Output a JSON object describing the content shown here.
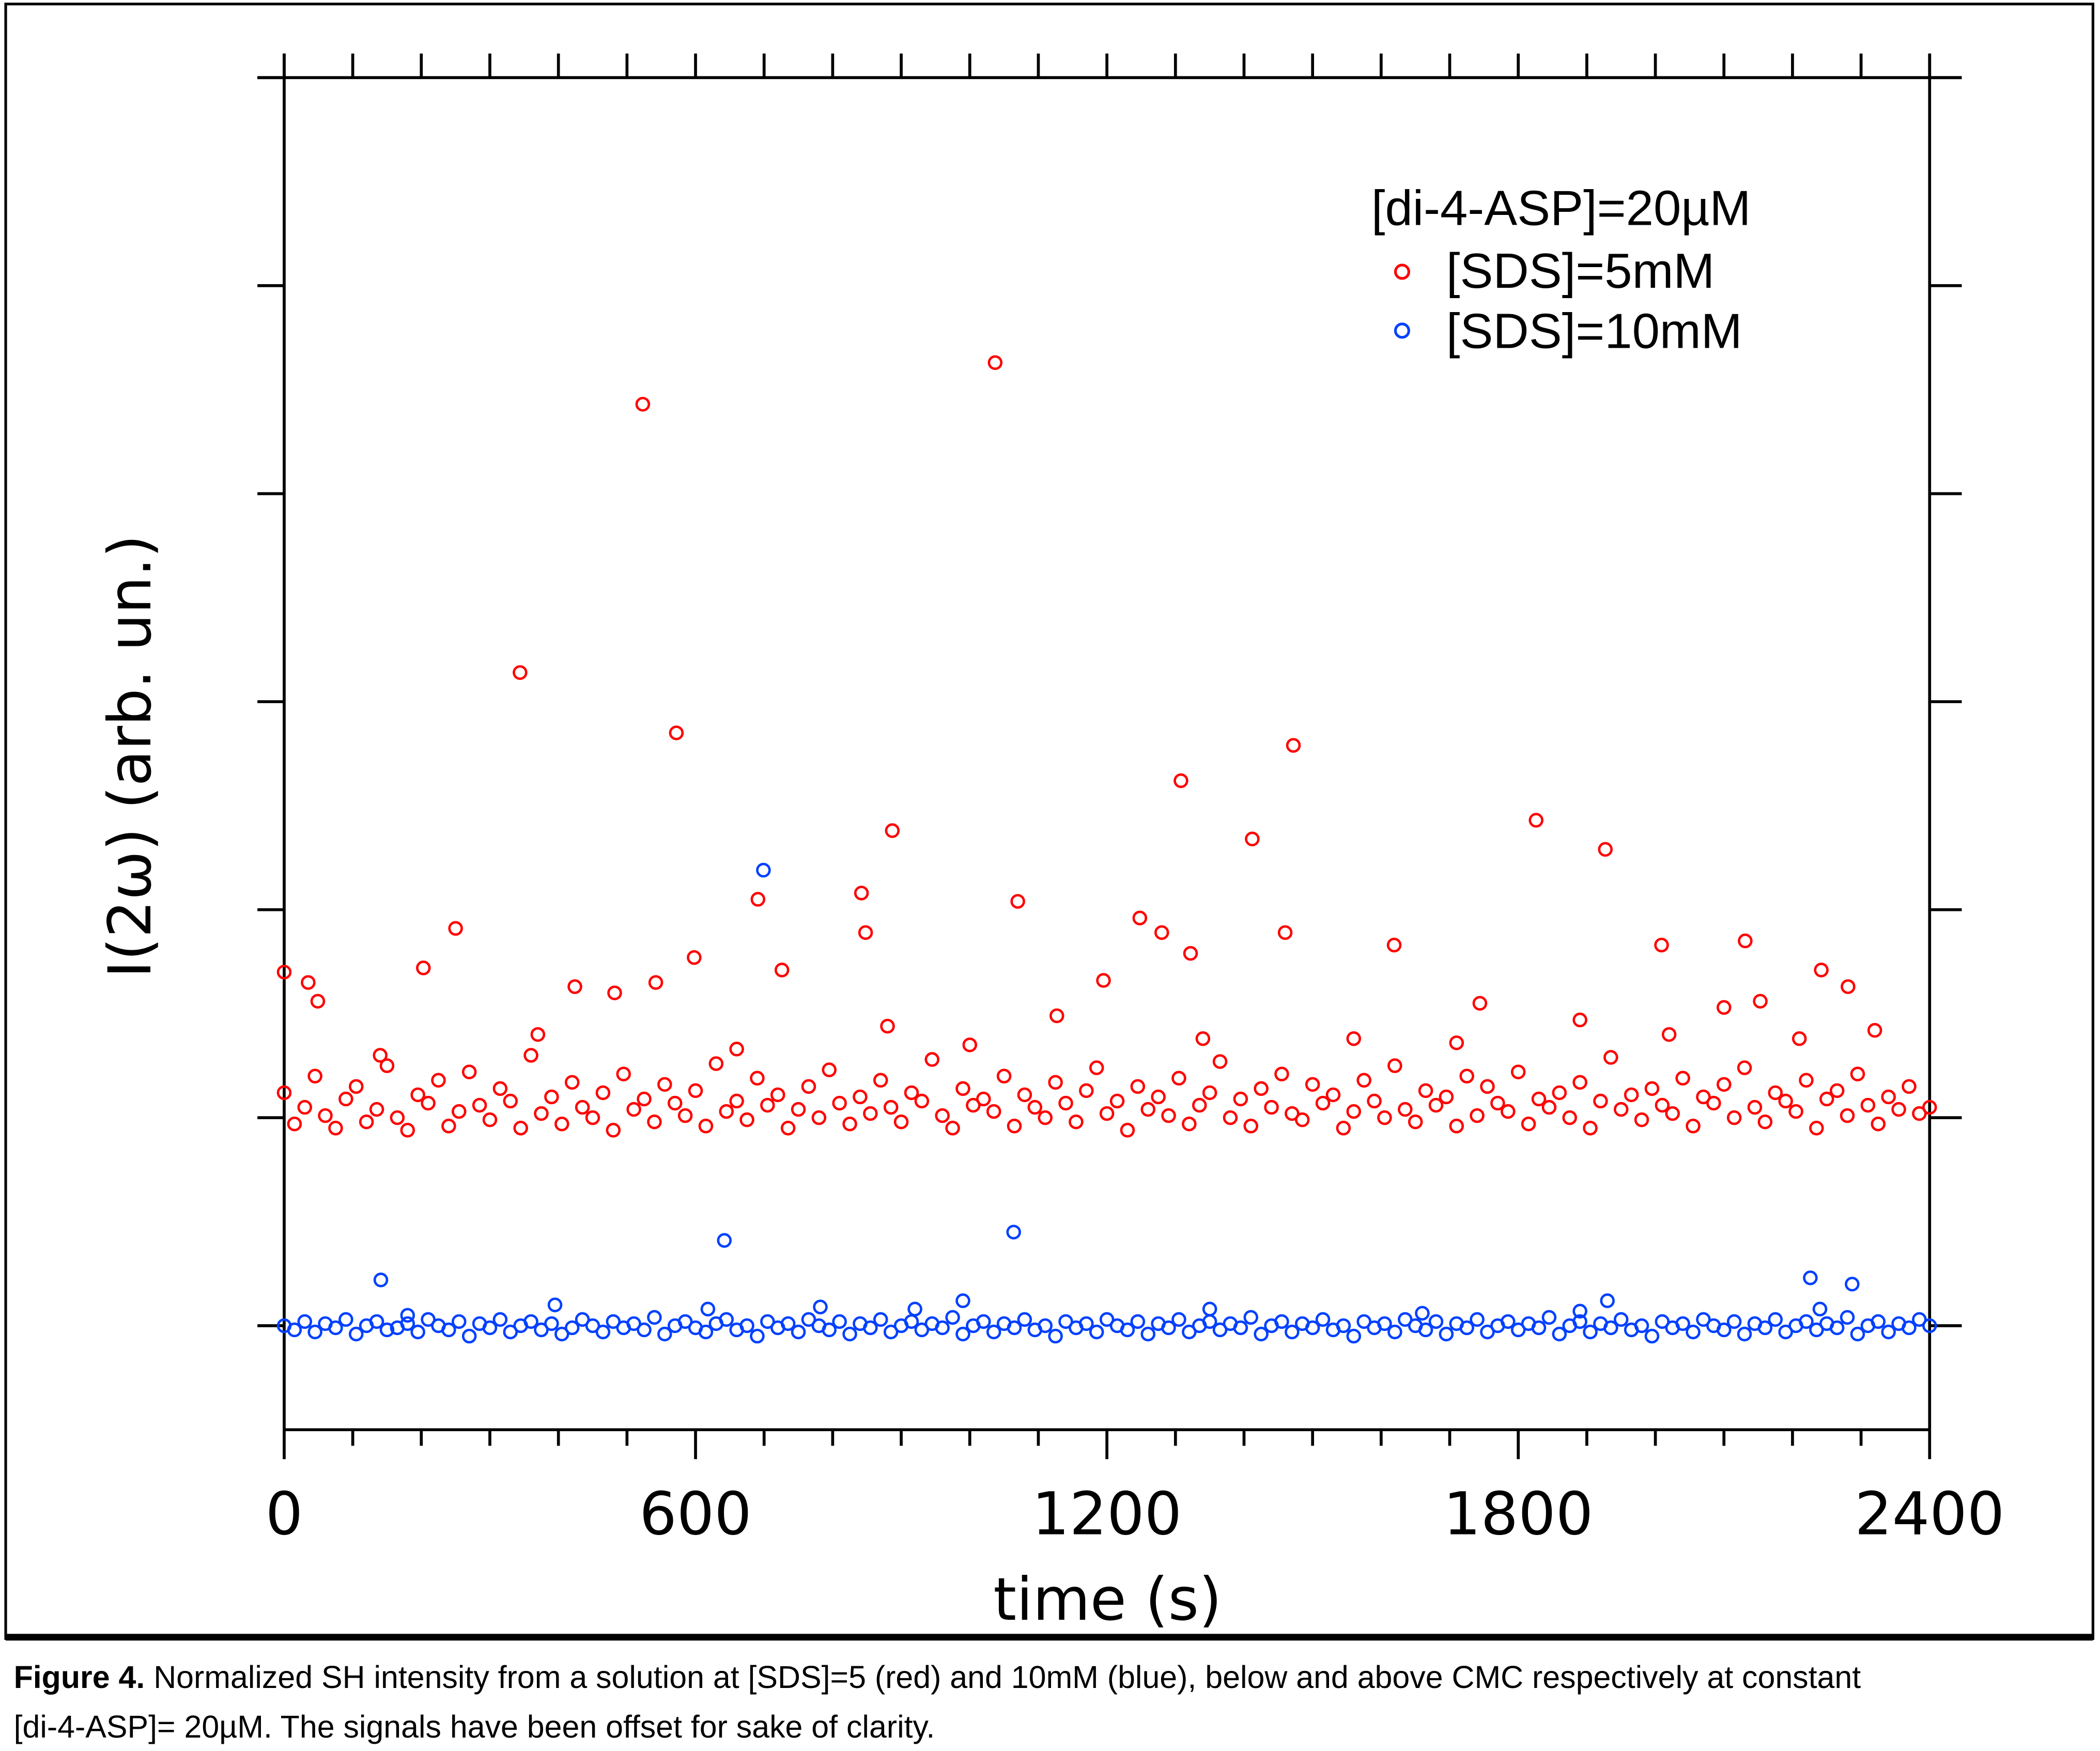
{
  "chart_data": {
    "type": "scatter",
    "xlabel": "time (s)",
    "ylabel": "I(2ω) (arb. un.)",
    "xlim": [
      0,
      2400
    ],
    "ylim": [
      -1.5,
      5
    ],
    "x_ticks": [
      "0",
      "600",
      "1200",
      "1800",
      "2400"
    ],
    "y_tick_labels_shown": false,
    "grid": false,
    "legend_placement": "top-right",
    "legend_title": "[di-4-ASP]=20µM",
    "marker": "open-circle",
    "series": [
      {
        "name": "[SDS]=5mM",
        "color": "#ff0000",
        "baseline": 0,
        "bulk_x_step": 15,
        "bulk_y": [
          0.12,
          -0.03,
          0.05,
          0.2,
          0.01,
          -0.05,
          0.09,
          0.15,
          -0.02,
          0.04,
          0.25,
          0.0,
          -0.06,
          0.11,
          0.07,
          0.18,
          -0.04,
          0.03,
          0.22,
          0.06,
          -0.01,
          0.14,
          0.08,
          -0.05,
          0.3,
          0.02,
          0.1,
          -0.03,
          0.17,
          0.05,
          0.0,
          0.12,
          -0.06,
          0.21,
          0.04,
          0.09,
          -0.02,
          0.16,
          0.07,
          0.01,
          0.13,
          -0.04,
          0.26,
          0.03,
          0.08,
          -0.01,
          0.19,
          0.06,
          0.11,
          -0.05,
          0.04,
          0.15,
          0.0,
          0.23,
          0.07,
          -0.03,
          0.1,
          0.02,
          0.18,
          0.05,
          -0.02,
          0.12,
          0.08,
          0.28,
          0.01,
          -0.05,
          0.14,
          0.06,
          0.09,
          0.03,
          0.2,
          -0.04,
          0.11,
          0.05,
          0.0,
          0.17,
          0.07,
          -0.02,
          0.13,
          0.24,
          0.02,
          0.08,
          -0.06,
          0.15,
          0.04,
          0.1,
          0.01,
          0.19,
          -0.03,
          0.06,
          0.12,
          0.27,
          0.0,
          0.09,
          -0.04,
          0.14,
          0.05,
          0.21,
          0.02,
          -0.01,
          0.16,
          0.07,
          0.11,
          -0.05,
          0.03,
          0.18,
          0.08,
          0.0,
          0.25,
          0.04,
          -0.02,
          0.13,
          0.06,
          0.1,
          -0.04,
          0.2,
          0.01,
          0.15,
          0.07,
          0.03,
          0.22,
          -0.03,
          0.09,
          0.05,
          0.12,
          0.0,
          0.17,
          -0.05,
          0.08,
          0.29,
          0.04,
          0.11,
          -0.01,
          0.14,
          0.06,
          0.02,
          0.19,
          -0.04,
          0.1,
          0.07,
          0.16,
          0.0,
          0.24,
          0.05,
          -0.02,
          0.12,
          0.08,
          0.03,
          0.18,
          -0.05,
          0.09,
          0.13,
          0.01,
          0.21,
          0.06,
          -0.03,
          0.1,
          0.04,
          0.15,
          0.02,
          0.05
        ],
        "points": [
          [
            0,
            0.7
          ],
          [
            523,
            3.43
          ],
          [
            1037,
            3.63
          ],
          [
            344,
            2.14
          ],
          [
            572,
            1.85
          ],
          [
            887,
            1.38
          ],
          [
            1472,
            1.79
          ],
          [
            1308,
            1.62
          ],
          [
            1412,
            1.34
          ],
          [
            1826,
            1.43
          ],
          [
            1927,
            1.29
          ],
          [
            691,
            1.05
          ],
          [
            842,
            1.08
          ],
          [
            1070,
            1.04
          ],
          [
            250,
            0.91
          ],
          [
            203,
            0.72
          ],
          [
            35,
            0.65
          ],
          [
            49,
            0.56
          ],
          [
            598,
            0.77
          ],
          [
            848,
            0.89
          ],
          [
            1248,
            0.96
          ],
          [
            1280,
            0.89
          ],
          [
            1322,
            0.79
          ],
          [
            1460,
            0.89
          ],
          [
            1619,
            0.83
          ],
          [
            2009,
            0.83
          ],
          [
            2131,
            0.85
          ],
          [
            2242,
            0.71
          ],
          [
            2281,
            0.63
          ],
          [
            726,
            0.71
          ],
          [
            424,
            0.63
          ],
          [
            482,
            0.6
          ],
          [
            542,
            0.65
          ],
          [
            1195,
            0.66
          ],
          [
            1744,
            0.55
          ],
          [
            2153,
            0.56
          ],
          [
            2100,
            0.53
          ],
          [
            1127,
            0.49
          ],
          [
            370,
            0.4
          ],
          [
            880,
            0.44
          ],
          [
            1340,
            0.38
          ],
          [
            1560,
            0.38
          ],
          [
            1890,
            0.47
          ],
          [
            2020,
            0.4
          ],
          [
            2320,
            0.42
          ],
          [
            140,
            0.3
          ],
          [
            660,
            0.33
          ],
          [
            1000,
            0.35
          ],
          [
            1710,
            0.36
          ],
          [
            2210,
            0.38
          ]
        ]
      },
      {
        "name": "[SDS]=10mM",
        "color": "#0040ff",
        "baseline": -1,
        "bulk_x_step": 15,
        "bulk_y": [
          -1.0,
          -1.02,
          -0.98,
          -1.03,
          -0.99,
          -1.01,
          -0.97,
          -1.04,
          -1.0,
          -0.98,
          -1.02,
          -1.01,
          -0.99,
          -1.03,
          -0.97,
          -1.0,
          -1.02,
          -0.98,
          -1.05,
          -0.99,
          -1.01,
          -0.97,
          -1.03,
          -1.0,
          -0.98,
          -1.02,
          -0.99,
          -1.04,
          -1.01,
          -0.97,
          -1.0,
          -1.03,
          -0.98,
          -1.01,
          -0.99,
          -1.02,
          -0.96,
          -1.04,
          -1.0,
          -0.98,
          -1.01,
          -1.03,
          -0.99,
          -0.97,
          -1.02,
          -1.0,
          -1.05,
          -0.98,
          -1.01,
          -0.99,
          -1.03,
          -0.97,
          -1.0,
          -1.02,
          -0.98,
          -1.04,
          -0.99,
          -1.01,
          -0.97,
          -1.03,
          -1.0,
          -0.98,
          -1.02,
          -0.99,
          -1.01,
          -0.96,
          -1.04,
          -1.0,
          -0.98,
          -1.03,
          -0.99,
          -1.01,
          -0.97,
          -1.02,
          -1.0,
          -1.05,
          -0.98,
          -1.01,
          -0.99,
          -1.03,
          -0.97,
          -1.0,
          -1.02,
          -0.98,
          -1.04,
          -0.99,
          -1.01,
          -0.97,
          -1.03,
          -1.0,
          -0.98,
          -1.02,
          -0.99,
          -1.01,
          -0.96,
          -1.04,
          -1.0,
          -0.98,
          -1.03,
          -0.99,
          -1.01,
          -0.97,
          -1.02,
          -1.0,
          -1.05,
          -0.98,
          -1.01,
          -0.99,
          -1.03,
          -0.97,
          -1.0,
          -1.02,
          -0.98,
          -1.04,
          -0.99,
          -1.01,
          -0.97,
          -1.03,
          -1.0,
          -0.98,
          -1.02,
          -0.99,
          -1.01,
          -0.96,
          -1.04,
          -1.0,
          -0.98,
          -1.03,
          -0.99,
          -1.01,
          -0.97,
          -1.02,
          -1.0,
          -1.05,
          -0.98,
          -1.01,
          -0.99,
          -1.03,
          -0.97,
          -1.0,
          -1.02,
          -0.98,
          -1.04,
          -0.99,
          -1.01,
          -0.97,
          -1.03,
          -1.0,
          -0.98,
          -1.02,
          -0.99,
          -1.01,
          -0.96,
          -1.04,
          -1.0,
          -0.98,
          -1.03,
          -0.99,
          -1.01,
          -0.97,
          -1.0
        ],
        "points": [
          [
            699,
            1.19
          ],
          [
            642,
            -0.59
          ],
          [
            1064,
            -0.55
          ],
          [
            141,
            -0.78
          ],
          [
            2226,
            -0.77
          ],
          [
            2287,
            -0.8
          ],
          [
            395,
            -0.9
          ],
          [
            990,
            -0.88
          ],
          [
            1930,
            -0.88
          ],
          [
            618,
            -0.92
          ],
          [
            782,
            -0.91
          ],
          [
            920,
            -0.92
          ],
          [
            1350,
            -0.92
          ],
          [
            2240,
            -0.92
          ],
          [
            180,
            -0.95
          ],
          [
            1660,
            -0.94
          ],
          [
            1890,
            -0.93
          ]
        ]
      }
    ]
  },
  "caption": {
    "label": "Figure 4.",
    "line1": " Normalized SH intensity from a solution at [SDS]=5 (red) and 10mM (blue), below and above CMC respectively at constant",
    "line2": "[di-4-ASP]= 20µM. The signals have been offset for sake of clarity."
  }
}
